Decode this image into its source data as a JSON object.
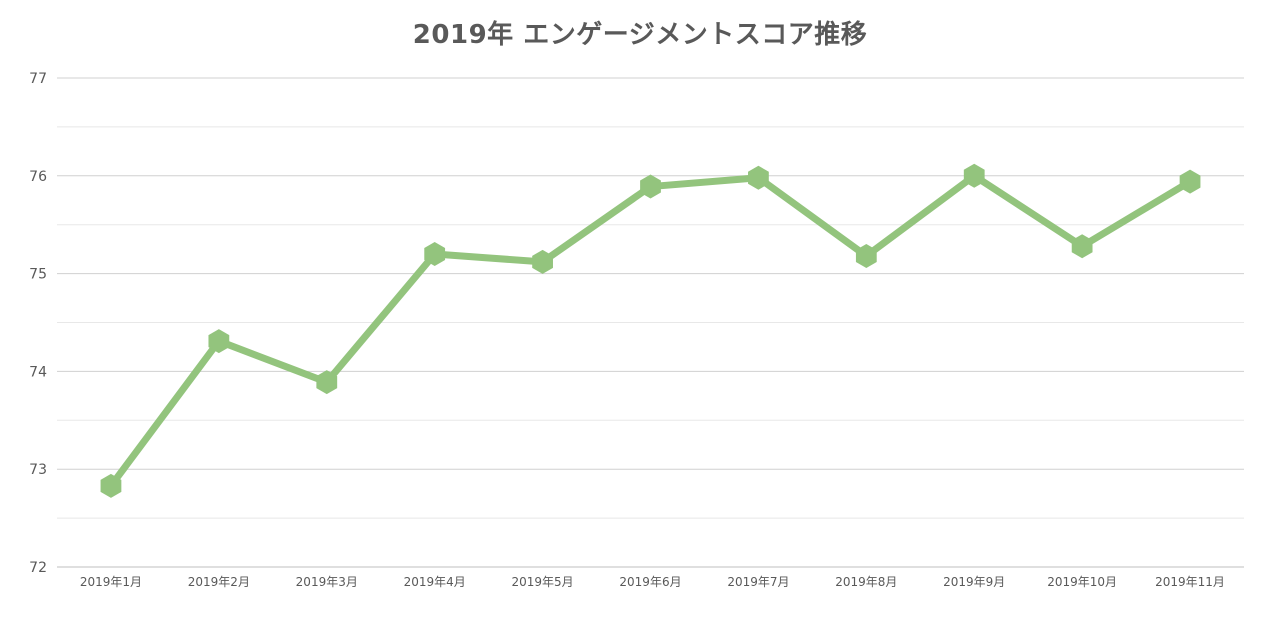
{
  "chart_data": {
    "type": "line",
    "title": "2019年 エンゲージメントスコア推移",
    "xlabel": "",
    "ylabel": "",
    "categories": [
      "2019年1月",
      "2019年2月",
      "2019年3月",
      "2019年4月",
      "2019年5月",
      "2019年6月",
      "2019年7月",
      "2019年8月",
      "2019年9月",
      "2019年10月",
      "2019年11月"
    ],
    "series": [
      {
        "values": [
          72.83,
          74.31,
          73.89,
          75.2,
          75.12,
          75.89,
          75.98,
          75.18,
          76.0,
          75.28,
          75.94
        ],
        "color": "#93c47d",
        "marker": "hexagon"
      }
    ],
    "ylim": [
      72,
      77
    ],
    "yticks": [
      72,
      73,
      74,
      75,
      76,
      77
    ],
    "grid": true,
    "minor_grid": true,
    "legend": "none"
  },
  "colors": {
    "line": "#93c47d",
    "major_grid": "#d0d0d0",
    "minor_grid": "#e8e8e8",
    "text": "#595959"
  }
}
